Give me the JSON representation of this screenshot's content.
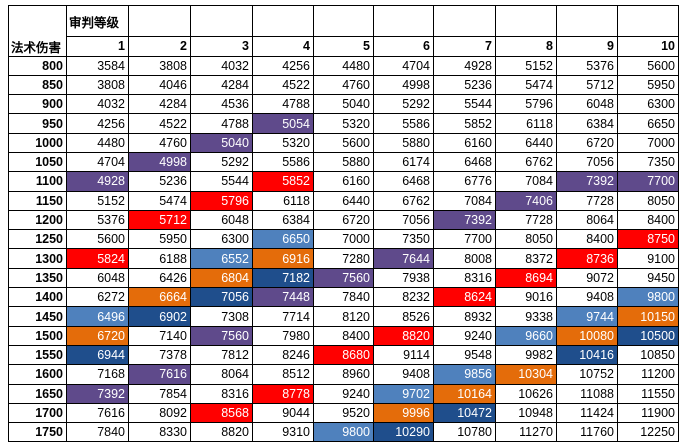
{
  "header": {
    "level_label": "审判等级",
    "row_label": "法术伤害",
    "levels": [
      "1",
      "2",
      "3",
      "4",
      "5",
      "6",
      "7",
      "8",
      "9",
      "10"
    ]
  },
  "colors": {
    "red": "#ff0000",
    "purple": "#5f4a8b",
    "blue": "#4f81bd",
    "orange": "#e46c0a",
    "navy": "#1f4e8c"
  },
  "rows": [
    {
      "dmg": "800",
      "vals": [
        "3584",
        "3808",
        "4032",
        "4256",
        "4480",
        "4704",
        "4928",
        "5152",
        "5376",
        "5600"
      ],
      "hl": [
        null,
        null,
        null,
        null,
        null,
        null,
        null,
        null,
        null,
        null
      ]
    },
    {
      "dmg": "850",
      "vals": [
        "3808",
        "4046",
        "4284",
        "4522",
        "4760",
        "4998",
        "5236",
        "5474",
        "5712",
        "5950"
      ],
      "hl": [
        null,
        null,
        null,
        null,
        null,
        null,
        null,
        null,
        null,
        null
      ]
    },
    {
      "dmg": "900",
      "vals": [
        "4032",
        "4284",
        "4536",
        "4788",
        "5040",
        "5292",
        "5544",
        "5796",
        "6048",
        "6300"
      ],
      "hl": [
        null,
        null,
        null,
        null,
        null,
        null,
        null,
        null,
        null,
        null
      ]
    },
    {
      "dmg": "950",
      "vals": [
        "4256",
        "4522",
        "4788",
        "5054",
        "5320",
        "5586",
        "5852",
        "6118",
        "6384",
        "6650"
      ],
      "hl": [
        null,
        null,
        null,
        "purple",
        null,
        null,
        null,
        null,
        null,
        null
      ]
    },
    {
      "dmg": "1000",
      "vals": [
        "4480",
        "4760",
        "5040",
        "5320",
        "5600",
        "5880",
        "6160",
        "6440",
        "6720",
        "7000"
      ],
      "hl": [
        null,
        null,
        "purple",
        null,
        null,
        null,
        null,
        null,
        null,
        null
      ]
    },
    {
      "dmg": "1050",
      "vals": [
        "4704",
        "4998",
        "5292",
        "5586",
        "5880",
        "6174",
        "6468",
        "6762",
        "7056",
        "7350"
      ],
      "hl": [
        null,
        "purple",
        null,
        null,
        null,
        null,
        null,
        null,
        null,
        null
      ]
    },
    {
      "dmg": "1100",
      "vals": [
        "4928",
        "5236",
        "5544",
        "5852",
        "6160",
        "6468",
        "6776",
        "7084",
        "7392",
        "7700"
      ],
      "hl": [
        "purple",
        null,
        null,
        "red",
        null,
        null,
        null,
        null,
        "purple",
        "purple"
      ]
    },
    {
      "dmg": "1150",
      "vals": [
        "5152",
        "5474",
        "5796",
        "6118",
        "6440",
        "6762",
        "7084",
        "7406",
        "7728",
        "8050"
      ],
      "hl": [
        null,
        null,
        "red",
        null,
        null,
        null,
        null,
        "purple",
        null,
        null
      ]
    },
    {
      "dmg": "1200",
      "vals": [
        "5376",
        "5712",
        "6048",
        "6384",
        "6720",
        "7056",
        "7392",
        "7728",
        "8064",
        "8400"
      ],
      "hl": [
        null,
        "red",
        null,
        null,
        null,
        null,
        "purple",
        null,
        null,
        null
      ]
    },
    {
      "dmg": "1250",
      "vals": [
        "5600",
        "5950",
        "6300",
        "6650",
        "7000",
        "7350",
        "7700",
        "8050",
        "8400",
        "8750"
      ],
      "hl": [
        null,
        null,
        null,
        "blue",
        null,
        null,
        null,
        null,
        null,
        "red"
      ]
    },
    {
      "dmg": "1300",
      "vals": [
        "5824",
        "6188",
        "6552",
        "6916",
        "7280",
        "7644",
        "8008",
        "8372",
        "8736",
        "9100"
      ],
      "hl": [
        "red",
        null,
        "blue",
        "orange",
        null,
        "purple",
        null,
        null,
        "red",
        null
      ]
    },
    {
      "dmg": "1350",
      "vals": [
        "6048",
        "6426",
        "6804",
        "7182",
        "7560",
        "7938",
        "8316",
        "8694",
        "9072",
        "9450"
      ],
      "hl": [
        null,
        null,
        "orange",
        "navy",
        "purple",
        null,
        null,
        "red",
        null,
        null
      ]
    },
    {
      "dmg": "1400",
      "vals": [
        "6272",
        "6664",
        "7056",
        "7448",
        "7840",
        "8232",
        "8624",
        "9016",
        "9408",
        "9800"
      ],
      "hl": [
        null,
        "orange",
        "navy",
        "purple",
        null,
        null,
        "red",
        null,
        null,
        "blue"
      ]
    },
    {
      "dmg": "1450",
      "vals": [
        "6496",
        "6902",
        "7308",
        "7714",
        "8120",
        "8526",
        "8932",
        "9338",
        "9744",
        "10150"
      ],
      "hl": [
        "blue",
        "navy",
        null,
        null,
        null,
        null,
        null,
        null,
        "blue",
        "orange"
      ]
    },
    {
      "dmg": "1500",
      "vals": [
        "6720",
        "7140",
        "7560",
        "7980",
        "8400",
        "8820",
        "9240",
        "9660",
        "10080",
        "10500"
      ],
      "hl": [
        "orange",
        null,
        "purple",
        null,
        null,
        "red",
        null,
        "blue",
        "orange",
        "navy"
      ]
    },
    {
      "dmg": "1550",
      "vals": [
        "6944",
        "7378",
        "7812",
        "8246",
        "8680",
        "9114",
        "9548",
        "9982",
        "10416",
        "10850"
      ],
      "hl": [
        "navy",
        null,
        null,
        null,
        "red",
        null,
        null,
        null,
        "navy",
        null
      ]
    },
    {
      "dmg": "1600",
      "vals": [
        "7168",
        "7616",
        "8064",
        "8512",
        "8960",
        "9408",
        "9856",
        "10304",
        "10752",
        "11200"
      ],
      "hl": [
        null,
        "purple",
        null,
        null,
        null,
        null,
        "blue",
        "orange",
        null,
        null
      ]
    },
    {
      "dmg": "1650",
      "vals": [
        "7392",
        "7854",
        "8316",
        "8778",
        "9240",
        "9702",
        "10164",
        "10626",
        "11088",
        "11550"
      ],
      "hl": [
        "purple",
        null,
        null,
        "red",
        null,
        "blue",
        "orange",
        null,
        null,
        null
      ]
    },
    {
      "dmg": "1700",
      "vals": [
        "7616",
        "8092",
        "8568",
        "9044",
        "9520",
        "9996",
        "10472",
        "10948",
        "11424",
        "11900"
      ],
      "hl": [
        null,
        null,
        "red",
        null,
        null,
        "orange",
        "navy",
        null,
        null,
        null
      ]
    },
    {
      "dmg": "1750",
      "vals": [
        "7840",
        "8330",
        "8820",
        "9310",
        "9800",
        "10290",
        "10780",
        "11270",
        "11760",
        "12250"
      ],
      "hl": [
        null,
        null,
        null,
        null,
        "blue",
        "navy",
        null,
        null,
        null,
        null
      ]
    }
  ]
}
